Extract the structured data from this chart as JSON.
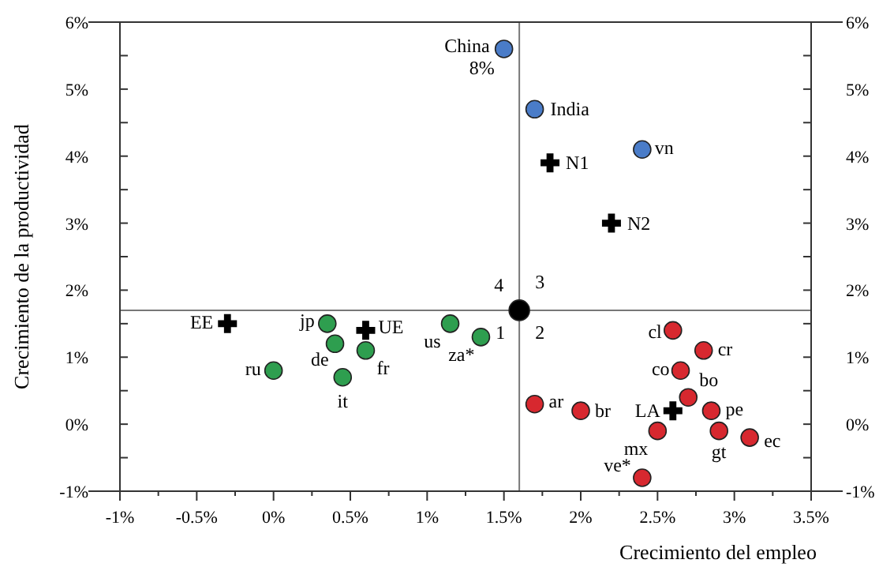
{
  "chart_data": {
    "type": "scatter",
    "xlabel": "Crecimiento  del  empleo",
    "ylabel": "Crecimiento de la productividad",
    "xlim": [
      -1,
      3.5
    ],
    "ylim": [
      -1,
      6
    ],
    "y2lim": [
      -1,
      6
    ],
    "xticks": [
      {
        "value": -1,
        "label": "-1%"
      },
      {
        "value": -0.75,
        "label": null
      },
      {
        "value": -0.5,
        "label": "-0.5%"
      },
      {
        "value": -0.25,
        "label": null
      },
      {
        "value": 0,
        "label": "0%"
      },
      {
        "value": 0.25,
        "label": null
      },
      {
        "value": 0.5,
        "label": "0.5%"
      },
      {
        "value": 0.75,
        "label": null
      },
      {
        "value": 1,
        "label": "1%"
      },
      {
        "value": 1.25,
        "label": null
      },
      {
        "value": 1.5,
        "label": "1.5%"
      },
      {
        "value": 1.75,
        "label": null
      },
      {
        "value": 2,
        "label": "2%"
      },
      {
        "value": 2.25,
        "label": null
      },
      {
        "value": 2.5,
        "label": "2.5%"
      },
      {
        "value": 2.75,
        "label": null
      },
      {
        "value": 3,
        "label": "3%"
      },
      {
        "value": 3.25,
        "label": null
      },
      {
        "value": 3.5,
        "label": "3.5%"
      }
    ],
    "yticks": [
      {
        "value": -1,
        "label": "-1%"
      },
      {
        "value": -0.5,
        "label": null
      },
      {
        "value": 0,
        "label": "0%"
      },
      {
        "value": 0.5,
        "label": null
      },
      {
        "value": 1,
        "label": "1%"
      },
      {
        "value": 1.5,
        "label": null
      },
      {
        "value": 2,
        "label": "2%"
      },
      {
        "value": 2.5,
        "label": null
      },
      {
        "value": 3,
        "label": "3%"
      },
      {
        "value": 3.5,
        "label": null
      },
      {
        "value": 4,
        "label": "4%"
      },
      {
        "value": 4.5,
        "label": null
      },
      {
        "value": 5,
        "label": "5%"
      },
      {
        "value": 5.5,
        "label": null
      },
      {
        "value": 6,
        "label": "6%"
      }
    ],
    "y2ticks": [
      {
        "value": -1,
        "label": "-1%"
      },
      {
        "value": -0.5,
        "label": null
      },
      {
        "value": 0,
        "label": "0%"
      },
      {
        "value": 0.5,
        "label": null
      },
      {
        "value": 1,
        "label": "1%"
      },
      {
        "value": 1.5,
        "label": null
      },
      {
        "value": 2,
        "label": "2%"
      },
      {
        "value": 2.5,
        "label": null
      },
      {
        "value": 3,
        "label": "3%"
      },
      {
        "value": 3.5,
        "label": null
      },
      {
        "value": 4,
        "label": "4%"
      },
      {
        "value": 4.5,
        "label": null
      },
      {
        "value": 5,
        "label": "5%"
      },
      {
        "value": 5.5,
        "label": null
      },
      {
        "value": 6,
        "label": "6%"
      }
    ],
    "grid": false,
    "ref_lines": [
      {
        "axis": "x",
        "value": 1.6,
        "color": "#777777"
      },
      {
        "axis": "y",
        "value": 1.7,
        "color": "#777777"
      }
    ],
    "series": [
      {
        "color": "#4a7cc8",
        "marker": "circle",
        "x": [
          1.5,
          1.7,
          2.4
        ],
        "values": [
          5.6,
          4.7,
          4.1
        ]
      },
      {
        "color": "#2e9e4f",
        "marker": "circle",
        "x": [
          0.35,
          0.4,
          0.6,
          0.45,
          0,
          1.15,
          1.35
        ],
        "values": [
          1.5,
          1.2,
          1.1,
          0.7,
          0.8,
          1.5,
          1.3
        ]
      },
      {
        "color": "#d7282f",
        "marker": "circle",
        "x": [
          2.6,
          2.8,
          2.65,
          2.7,
          2.85,
          2.9,
          2.5,
          3.1,
          1.7,
          2.0,
          2.4
        ],
        "values": [
          1.4,
          1.1,
          0.8,
          0.4,
          0.2,
          -0.1,
          -0.1,
          -0.2,
          0.3,
          0.2,
          -0.8
        ]
      },
      {
        "color": "#000000",
        "marker": "cross",
        "x": [
          1.8,
          2.2,
          -0.3,
          0.6,
          2.6
        ],
        "values": [
          3.9,
          3.0,
          1.5,
          1.4,
          0.2
        ]
      },
      {
        "color": "#000000",
        "marker": "circle",
        "x": [
          1.6
        ],
        "values": [
          1.7
        ]
      }
    ],
    "annotations": [
      {
        "text": "China",
        "x": 1.5,
        "y": 5.6
      },
      {
        "text": "8%",
        "x": 1.5,
        "y": 5.6
      },
      {
        "text": "India",
        "x": 1.7,
        "y": 4.7
      },
      {
        "text": "vn",
        "x": 2.4,
        "y": 4.1
      },
      {
        "text": "N1",
        "x": 1.8,
        "y": 3.9
      },
      {
        "text": "N2",
        "x": 2.2,
        "y": 3.0
      },
      {
        "text": "EE",
        "x": -0.3,
        "y": 1.5
      },
      {
        "text": "UE",
        "x": 0.6,
        "y": 1.4
      },
      {
        "text": "jp",
        "x": 0.35,
        "y": 1.5
      },
      {
        "text": "de",
        "x": 0.4,
        "y": 1.2
      },
      {
        "text": "fr",
        "x": 0.6,
        "y": 1.1
      },
      {
        "text": "it",
        "x": 0.45,
        "y": 0.7
      },
      {
        "text": "ru",
        "x": 0,
        "y": 0.8
      },
      {
        "text": "us",
        "x": 1.15,
        "y": 1.5
      },
      {
        "text": "za*",
        "x": 1.35,
        "y": 1.3
      },
      {
        "text": "cl",
        "x": 2.6,
        "y": 1.4
      },
      {
        "text": "cr",
        "x": 2.8,
        "y": 1.1
      },
      {
        "text": "co",
        "x": 2.65,
        "y": 0.8
      },
      {
        "text": "bo",
        "x": 2.7,
        "y": 0.4
      },
      {
        "text": "pe",
        "x": 2.85,
        "y": 0.2
      },
      {
        "text": "LA",
        "x": 2.6,
        "y": 0.2
      },
      {
        "text": "gt",
        "x": 2.9,
        "y": -0.1
      },
      {
        "text": "mx",
        "x": 2.5,
        "y": -0.1
      },
      {
        "text": "ec",
        "x": 3.1,
        "y": -0.2
      },
      {
        "text": "ar",
        "x": 1.7,
        "y": 0.3
      },
      {
        "text": "br",
        "x": 2.0,
        "y": 0.2
      },
      {
        "text": "ve*",
        "x": 2.4,
        "y": -0.8
      },
      {
        "text": "4",
        "x": 1.6,
        "y": 1.7
      },
      {
        "text": "3",
        "x": 1.6,
        "y": 1.7
      },
      {
        "text": "1",
        "x": 1.6,
        "y": 1.7
      },
      {
        "text": "2",
        "x": 1.6,
        "y": 1.7
      }
    ]
  }
}
